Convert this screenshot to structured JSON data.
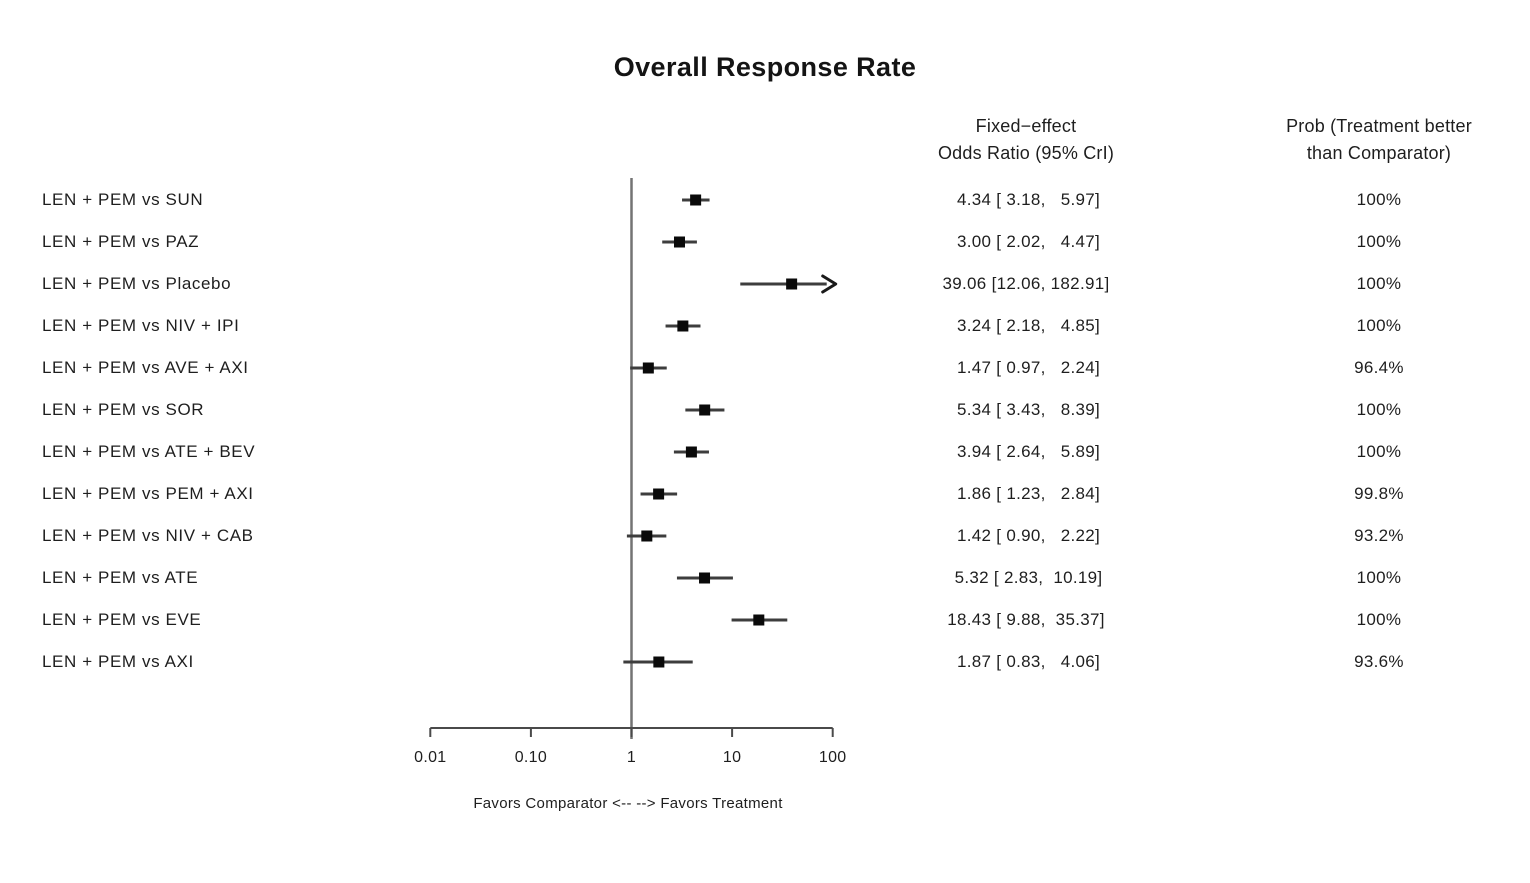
{
  "page": {
    "background": "#ffffff"
  },
  "chart_data": {
    "type": "forest",
    "title": "Overall Response Rate",
    "columns": {
      "or_header_line1": "Fixed−effect",
      "or_header_line2": "Odds Ratio (95% CrI)",
      "prob_header_line1": "Prob (Treatment better",
      "prob_header_line2": "than Comparator)"
    },
    "x_axis": {
      "scale": "log10",
      "range": [
        0.01,
        100
      ],
      "ticks": [
        0.01,
        0.1,
        1,
        10,
        100
      ],
      "tick_labels": [
        "0.01",
        "0.10",
        "1",
        "10",
        "100"
      ],
      "reference_line": 1,
      "caption": "Favors Comparator <-- --> Favors Treatment"
    },
    "rows": [
      {
        "label": "LEN + PEM vs SUN",
        "or": 4.34,
        "ci_low": 3.18,
        "ci_high": 5.97,
        "or_text": " 4.34 [ 3.18,   5.97]",
        "prob": "100%"
      },
      {
        "label": "LEN + PEM vs PAZ",
        "or": 3.0,
        "ci_low": 2.02,
        "ci_high": 4.47,
        "or_text": " 3.00 [ 2.02,   4.47]",
        "prob": "100%"
      },
      {
        "label": "LEN + PEM vs Placebo",
        "or": 39.06,
        "ci_low": 12.06,
        "ci_high": 182.91,
        "or_text": "39.06 [12.06, 182.91]",
        "prob": "100%"
      },
      {
        "label": "LEN + PEM vs NIV + IPI",
        "or": 3.24,
        "ci_low": 2.18,
        "ci_high": 4.85,
        "or_text": " 3.24 [ 2.18,   4.85]",
        "prob": "100%"
      },
      {
        "label": "LEN + PEM vs AVE + AXI",
        "or": 1.47,
        "ci_low": 0.97,
        "ci_high": 2.24,
        "or_text": " 1.47 [ 0.97,   2.24]",
        "prob": "96.4%"
      },
      {
        "label": "LEN + PEM vs SOR",
        "or": 5.34,
        "ci_low": 3.43,
        "ci_high": 8.39,
        "or_text": " 5.34 [ 3.43,   8.39]",
        "prob": "100%"
      },
      {
        "label": "LEN + PEM vs ATE + BEV",
        "or": 3.94,
        "ci_low": 2.64,
        "ci_high": 5.89,
        "or_text": " 3.94 [ 2.64,   5.89]",
        "prob": "100%"
      },
      {
        "label": "LEN + PEM vs PEM + AXI",
        "or": 1.86,
        "ci_low": 1.23,
        "ci_high": 2.84,
        "or_text": " 1.86 [ 1.23,   2.84]",
        "prob": "99.8%"
      },
      {
        "label": "LEN + PEM vs NIV + CAB",
        "or": 1.42,
        "ci_low": 0.9,
        "ci_high": 2.22,
        "or_text": " 1.42 [ 0.90,   2.22]",
        "prob": "93.2%"
      },
      {
        "label": "LEN + PEM vs ATE",
        "or": 5.32,
        "ci_low": 2.83,
        "ci_high": 10.19,
        "or_text": " 5.32 [ 2.83,  10.19]",
        "prob": "100%"
      },
      {
        "label": "LEN + PEM vs EVE",
        "or": 18.43,
        "ci_low": 9.88,
        "ci_high": 35.37,
        "or_text": "18.43 [ 9.88,  35.37]",
        "prob": "100%"
      },
      {
        "label": "LEN + PEM vs AXI",
        "or": 1.87,
        "ci_low": 0.83,
        "ci_high": 4.06,
        "or_text": " 1.87 [ 0.83,   4.06]",
        "prob": "93.6%"
      }
    ],
    "colors": {
      "marker": "#0a0a0a",
      "ci_line": "#3d3d3d",
      "axis": "#4a4a4a",
      "reference_line": "#747474",
      "text": "#1e1e1e"
    },
    "legend": {
      "position": "none"
    },
    "grid": false
  }
}
